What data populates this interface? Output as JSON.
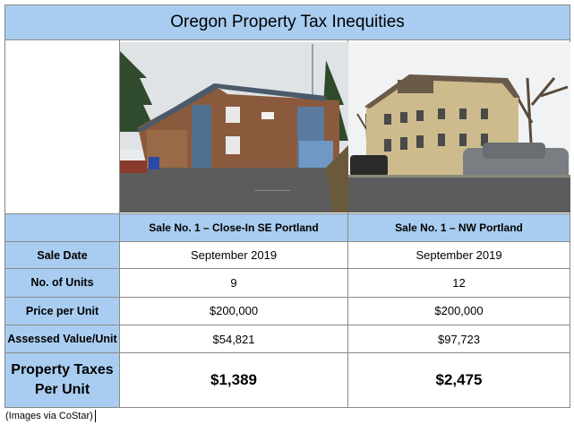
{
  "title": "Oregon Property Tax Inequities",
  "columns": [
    "Sale No. 1 – Close-In SE Portland",
    "Sale No. 1 – NW Portland"
  ],
  "rows": [
    {
      "label": "Sale Date",
      "values": [
        "September 2019",
        "September 2019"
      ]
    },
    {
      "label": "No. of Units",
      "values": [
        "9",
        "12"
      ]
    },
    {
      "label": "Price per Unit",
      "values": [
        "$200,000",
        "$200,000"
      ]
    },
    {
      "label": "Assessed Value/Unit",
      "values": [
        "$54,821",
        "$97,723"
      ]
    }
  ],
  "taxes": {
    "label_line1": "Property Taxes",
    "label_line2": "Per Unit",
    "values": [
      "$1,389",
      "$2,475"
    ]
  },
  "caption": "(Images via CoStar)"
}
